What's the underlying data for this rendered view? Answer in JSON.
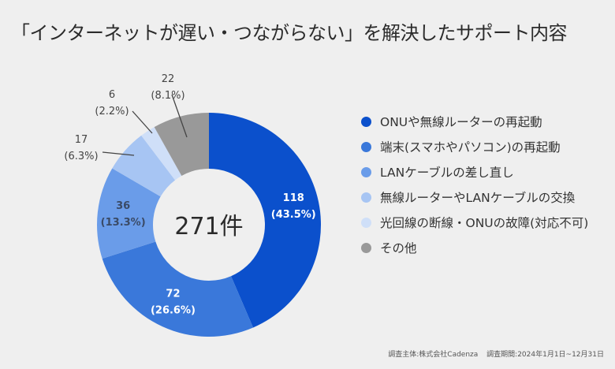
{
  "title": "「インターネットが遅い・つながらない」を解決したサポート内容",
  "chart_data": {
    "type": "pie",
    "variant": "donut",
    "title": "「インターネットが遅い・つながらない」を解決したサポート内容",
    "center_label": "271件",
    "total": 271,
    "unit": "件",
    "legend_position": "right",
    "slices": [
      {
        "label": "ONUや無線ルーターの再起動",
        "value": 118,
        "percent": "43.5%",
        "color": "#0b50cc",
        "label_color": "#ffffff"
      },
      {
        "label": "端末(スマホやパソコン)の再起動",
        "value": 72,
        "percent": "26.6%",
        "color": "#3a78da",
        "label_color": "#ffffff"
      },
      {
        "label": "LANケーブルの差し直し",
        "value": 36,
        "percent": "13.3%",
        "color": "#6a9ce9",
        "label_color": "#3a4a66"
      },
      {
        "label": "無線ルーターやLANケーブルの交換",
        "value": 17,
        "percent": "6.3%",
        "color": "#a7c5f3",
        "label_color": "#444444"
      },
      {
        "label": "光回線の断線・ONUの故障(対応不可)",
        "value": 6,
        "percent": "2.2%",
        "color": "#cfdff8",
        "label_color": "#444444"
      },
      {
        "label": "その他",
        "value": 22,
        "percent": "8.1%",
        "color": "#999999",
        "label_color": "#444444"
      }
    ]
  },
  "footnote": {
    "survey_by": "調査主体:株式会社Cadenza",
    "survey_period": "調査期間:2024年1月1日~12月31日"
  }
}
